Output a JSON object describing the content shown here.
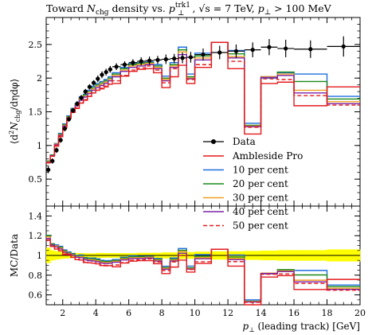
{
  "chart_data": {
    "type": "line",
    "title": "Toward N_chg density vs. p_⊥^trk1, √s = 7 TeV, p_⊥ > 100 MeV",
    "title_parts": {
      "prefix": "Toward ",
      "n": "N",
      "n_sub": "chg",
      "mid": " density vs. ",
      "p": "p",
      "p_sub": "⊥",
      "p_sup": "trk1",
      "sep": ", ",
      "sqrt_s": "√s = 7 TeV, ",
      "cut_p": "p",
      "cut_sub": "⊥",
      "cut_rest": " > 100 MeV"
    },
    "ylabel": "⟨d²N_chg/dηdφ⟩",
    "ylabel_parts": {
      "open": "⟨d",
      "sup": "2",
      "n": "N",
      "sub": "chg",
      "rest": "/dηdφ⟩"
    },
    "xlabel": "p_⊥ (leading track) [GeV]",
    "xlabel_parts": {
      "p": "p",
      "sub": "⊥",
      "rest": " (leading track) [GeV]"
    },
    "ratio_ylabel": "MC/Data",
    "xlim": [
      1,
      20
    ],
    "ylim": [
      0.1,
      2.9
    ],
    "ratio_ylim": [
      0.5,
      1.5
    ],
    "x_ticks": [
      "2",
      "4",
      "6",
      "8",
      "10",
      "12",
      "14",
      "16",
      "18",
      "20"
    ],
    "y_ticks": [
      "0.5",
      "1",
      "1.5",
      "2",
      "2.5"
    ],
    "ratio_y_ticks": [
      "0.6",
      "0.8",
      "1",
      "1.2",
      "1.4"
    ],
    "legend_position": "bottom-right",
    "colors": {
      "data": "#000000",
      "ambleside": "#e41a1c",
      "p10": "#1f6fe0",
      "p20": "#1a8a1a",
      "p30": "#f0a020",
      "p40": "#7b22a8",
      "p50": "#e41a1c",
      "band": "#ffff00"
    },
    "bins": [
      [
        1.0,
        1.25
      ],
      [
        1.25,
        1.5
      ],
      [
        1.5,
        1.75
      ],
      [
        1.75,
        2.0
      ],
      [
        2.0,
        2.25
      ],
      [
        2.25,
        2.5
      ],
      [
        2.5,
        2.75
      ],
      [
        2.75,
        3.0
      ],
      [
        3.0,
        3.25
      ],
      [
        3.25,
        3.5
      ],
      [
        3.5,
        3.75
      ],
      [
        3.75,
        4.0
      ],
      [
        4.0,
        4.25
      ],
      [
        4.25,
        4.5
      ],
      [
        4.5,
        4.75
      ],
      [
        4.75,
        5.0
      ],
      [
        5.0,
        5.5
      ],
      [
        5.5,
        6.0
      ],
      [
        6.0,
        6.5
      ],
      [
        6.5,
        7.0
      ],
      [
        7.0,
        7.5
      ],
      [
        7.5,
        8.0
      ],
      [
        8.0,
        8.5
      ],
      [
        8.5,
        9.0
      ],
      [
        9.0,
        9.5
      ],
      [
        9.5,
        10.0
      ],
      [
        10.0,
        11.0
      ],
      [
        11.0,
        12.0
      ],
      [
        12.0,
        13.0
      ],
      [
        13.0,
        14.0
      ],
      [
        14.0,
        15.0
      ],
      [
        15.0,
        16.0
      ],
      [
        16.0,
        18.0
      ],
      [
        18.0,
        20.0
      ]
    ],
    "data": {
      "name": "Data",
      "y": [
        0.64,
        0.77,
        0.93,
        1.08,
        1.25,
        1.39,
        1.52,
        1.62,
        1.71,
        1.8,
        1.87,
        1.93,
        1.99,
        2.05,
        2.09,
        2.13,
        2.17,
        2.2,
        2.23,
        2.25,
        2.26,
        2.27,
        2.28,
        2.29,
        2.3,
        2.31,
        2.35,
        2.38,
        2.4,
        2.42,
        2.46,
        2.44,
        2.43,
        2.47
      ],
      "yerr": [
        0.05,
        0.04,
        0.04,
        0.04,
        0.04,
        0.04,
        0.04,
        0.04,
        0.04,
        0.04,
        0.04,
        0.04,
        0.05,
        0.05,
        0.05,
        0.05,
        0.05,
        0.05,
        0.05,
        0.06,
        0.06,
        0.06,
        0.07,
        0.07,
        0.08,
        0.08,
        0.09,
        0.1,
        0.1,
        0.11,
        0.12,
        0.13,
        0.13,
        0.15
      ]
    },
    "series": [
      {
        "name": "Ambleside Pro",
        "style": "solid",
        "y": [
          0.74,
          0.84,
          0.99,
          1.13,
          1.26,
          1.4,
          1.49,
          1.55,
          1.63,
          1.67,
          1.73,
          1.78,
          1.82,
          1.84,
          1.87,
          1.91,
          1.92,
          2.03,
          2.1,
          2.13,
          2.14,
          2.08,
          1.86,
          2.02,
          2.19,
          1.92,
          2.16,
          2.53,
          2.14,
          1.17,
          1.92,
          1.94,
          1.59,
          1.87
        ]
      },
      {
        "name": "10 per cent",
        "style": "solid",
        "y": [
          0.77,
          0.86,
          1.03,
          1.18,
          1.32,
          1.44,
          1.55,
          1.62,
          1.72,
          1.76,
          1.82,
          1.88,
          1.92,
          1.95,
          1.98,
          2.02,
          2.08,
          2.16,
          2.22,
          2.23,
          2.24,
          2.2,
          2.03,
          2.23,
          2.46,
          2.06,
          2.37,
          2.53,
          2.41,
          1.33,
          2.0,
          2.08,
          2.06,
          1.73
        ]
      },
      {
        "name": "20 per cent",
        "style": "solid",
        "y": [
          0.77,
          0.86,
          1.02,
          1.17,
          1.31,
          1.43,
          1.54,
          1.61,
          1.7,
          1.75,
          1.8,
          1.86,
          1.9,
          1.93,
          1.96,
          2.0,
          2.06,
          2.14,
          2.2,
          2.22,
          2.23,
          2.18,
          2.0,
          2.2,
          2.42,
          2.02,
          2.33,
          2.53,
          2.36,
          1.3,
          2.02,
          2.09,
          1.95,
          1.69
        ]
      },
      {
        "name": "30 per cent",
        "style": "solid",
        "y": [
          0.76,
          0.85,
          1.02,
          1.16,
          1.3,
          1.42,
          1.53,
          1.6,
          1.69,
          1.73,
          1.79,
          1.84,
          1.88,
          1.91,
          1.94,
          1.98,
          2.04,
          2.12,
          2.18,
          2.2,
          2.22,
          2.16,
          1.98,
          2.18,
          2.39,
          2.0,
          2.3,
          2.53,
          2.32,
          1.29,
          2.02,
          2.06,
          1.82,
          1.65
        ]
      },
      {
        "name": "40 per cent",
        "style": "solid",
        "y": [
          0.75,
          0.85,
          1.01,
          1.15,
          1.29,
          1.41,
          1.52,
          1.59,
          1.67,
          1.72,
          1.77,
          1.82,
          1.86,
          1.89,
          1.92,
          1.96,
          2.02,
          2.1,
          2.16,
          2.18,
          2.2,
          2.14,
          1.96,
          2.16,
          2.35,
          1.99,
          2.27,
          2.53,
          2.3,
          1.28,
          2.01,
          2.04,
          1.78,
          1.62
        ]
      },
      {
        "name": "50 per cent",
        "style": "dashed",
        "y": [
          0.74,
          0.84,
          1.0,
          1.14,
          1.27,
          1.39,
          1.49,
          1.56,
          1.63,
          1.68,
          1.73,
          1.78,
          1.82,
          1.85,
          1.88,
          1.91,
          1.96,
          2.04,
          2.12,
          2.15,
          2.18,
          2.12,
          1.93,
          2.14,
          2.3,
          1.98,
          2.2,
          2.53,
          2.25,
          1.27,
          1.99,
          1.98,
          1.74,
          1.6
        ]
      }
    ]
  }
}
